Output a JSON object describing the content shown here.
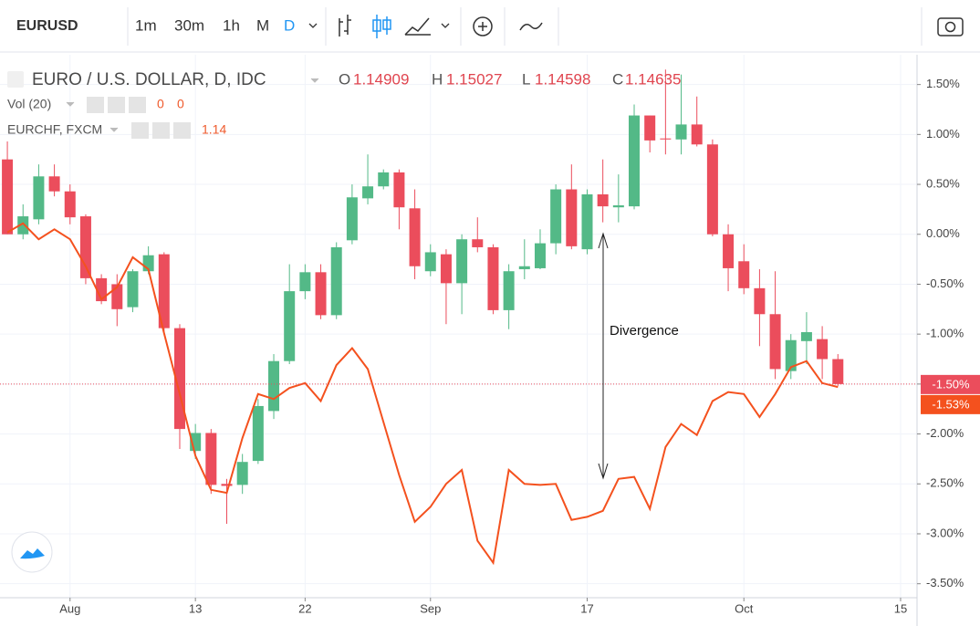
{
  "toolbar": {
    "symbol": "EURUSD",
    "intervals": [
      "1m",
      "30m",
      "1h",
      "M",
      "D"
    ]
  },
  "chart_data": {
    "type": "candlestick",
    "title": "EURO / U.S. DOLLAR, D, IDC",
    "ohlc_legend": [
      {
        "key": "O",
        "value": 1.14909
      },
      {
        "key": "H",
        "value": 1.15027
      },
      {
        "key": "L",
        "value": 1.14598
      },
      {
        "key": "C",
        "value": 1.14635
      }
    ],
    "volume": {
      "name": "Vol (20)",
      "values": [
        0,
        0
      ]
    },
    "up_color": "#53b987",
    "down_color": "#eb4d5c",
    "open": [
      0.75,
      0,
      0.15,
      0.58,
      0.43,
      0.18,
      -0.44,
      -0.5,
      -0.73,
      -0.37,
      -0.2,
      -0.94,
      -2.17,
      -1.99,
      -2.5,
      -2.51,
      -2.27,
      -1.77,
      -1.27,
      -0.57,
      -0.38,
      -0.81,
      -0.06,
      0.36,
      0.48,
      0.62,
      0.26,
      -0.37,
      -0.2,
      -0.49,
      -0.05,
      -0.13,
      -0.76,
      -0.35,
      -0.34,
      -0.09,
      0.45,
      -0.15,
      0.4,
      0.27,
      0.28,
      1.19,
      0.96,
      0.95,
      1.1,
      0.9,
      0,
      -0.27,
      -0.54,
      -0.8,
      -1.37,
      -1.07,
      -1.05,
      -1.25
    ],
    "high": [
      0.93,
      0.3,
      0.7,
      0.7,
      0.5,
      0.2,
      -0.4,
      -0.4,
      -0.35,
      -0.12,
      -0.18,
      -0.9,
      -1.9,
      -1.95,
      -2.45,
      -2.2,
      -1.65,
      -1.2,
      -0.3,
      -0.3,
      -0.3,
      -0.08,
      0.5,
      0.8,
      0.65,
      0.65,
      0.45,
      -0.1,
      -0.15,
      0,
      0.17,
      -0.1,
      -0.3,
      -0.05,
      0.05,
      0.5,
      0.7,
      0.45,
      0.75,
      0.6,
      1.3,
      1.19,
      1.65,
      1.6,
      1.38,
      0.95,
      0.1,
      -0.1,
      -0.35,
      -0.37,
      -1,
      -0.78,
      -0.92,
      -1.2
    ],
    "low": [
      0,
      -0.05,
      0.1,
      0.38,
      0.1,
      -0.5,
      -0.7,
      -0.92,
      -0.78,
      -0.4,
      -1,
      -2.15,
      -2.25,
      -2.6,
      -2.9,
      -2.6,
      -2.3,
      -1.85,
      -1.3,
      -0.65,
      -0.85,
      -0.85,
      -0.1,
      0.3,
      0.45,
      0.05,
      -0.45,
      -0.42,
      -0.9,
      -0.8,
      -0.18,
      -0.8,
      -0.95,
      -0.45,
      -0.35,
      -0.2,
      -0.15,
      -0.2,
      0.12,
      0.12,
      0.25,
      0.82,
      0.8,
      0.8,
      0.88,
      -0.02,
      -0.57,
      -0.6,
      -1.12,
      -1.45,
      -1.45,
      -1.3,
      -1.45,
      -1.52
    ],
    "close": [
      0,
      0.18,
      0.58,
      0.43,
      0.17,
      -0.44,
      -0.67,
      -0.75,
      -0.37,
      -0.21,
      -0.94,
      -1.95,
      -1.99,
      -2.51,
      -2.52,
      -2.28,
      -1.72,
      -1.27,
      -0.57,
      -0.38,
      -0.81,
      -0.13,
      0.37,
      0.48,
      0.62,
      0.27,
      -0.32,
      -0.18,
      -0.49,
      -0.05,
      -0.13,
      -0.76,
      -0.37,
      -0.32,
      -0.09,
      0.45,
      -0.12,
      0.4,
      0.28,
      0.29,
      1.19,
      0.94,
      0.95,
      1.1,
      0.9,
      0,
      -0.34,
      -0.54,
      -0.8,
      -1.35,
      -1.06,
      -0.98,
      -1.25,
      -1.5
    ],
    "series": [
      {
        "name": "EURCHF, FXCM",
        "color": "#f4511e",
        "last_value": 1.14,
        "values": [
          0.02,
          0.11,
          -0.05,
          0.05,
          -0.05,
          -0.32,
          -0.65,
          -0.53,
          -0.23,
          -0.35,
          -0.99,
          -1.6,
          -2.22,
          -2.56,
          -2.59,
          -2.04,
          -1.6,
          -1.65,
          -1.54,
          -1.49,
          -1.67,
          -1.31,
          -1.14,
          -1.35,
          -1.88,
          -2.41,
          -2.88,
          -2.73,
          -2.5,
          -2.36,
          -3.07,
          -3.29,
          -2.36,
          -2.5,
          -2.51,
          -2.5,
          -2.86,
          -2.83,
          -2.77,
          -2.45,
          -2.43,
          -2.75,
          -2.13,
          -1.9,
          -2.01,
          -1.67,
          -1.58,
          -1.6,
          -1.83,
          -1.6,
          -1.33,
          -1.27,
          -1.49,
          -1.53
        ]
      }
    ],
    "price_labels": [
      {
        "value": -1.5,
        "label": "-1.50%",
        "color": "#eb4d5c"
      },
      {
        "value": -1.53,
        "label": "-1.53%",
        "color": "#f4511e"
      }
    ],
    "annotation": "Divergence",
    "xlim": [
      -0.47,
      58.05
    ],
    "xticks": [
      {
        "value": 4,
        "label": "Aug"
      },
      {
        "value": 12,
        "label": "13"
      },
      {
        "value": 19,
        "label": "22"
      },
      {
        "value": 27,
        "label": "Sep"
      },
      {
        "value": 37,
        "label": "17"
      },
      {
        "value": 47,
        "label": "Oct"
      },
      {
        "value": 57,
        "label": "15"
      }
    ],
    "ylim": [
      -3.64,
      1.78
    ],
    "yticks": [
      {
        "value": 1.5,
        "label": "1.50%"
      },
      {
        "value": 1,
        "label": "1.00%"
      },
      {
        "value": 0.5,
        "label": "0.50%"
      },
      {
        "value": 0,
        "label": "0.00%"
      },
      {
        "value": -0.5,
        "label": "-0.50%"
      },
      {
        "value": -1,
        "label": "-1.00%"
      },
      {
        "value": -1.5,
        "label": "-1.50%"
      },
      {
        "value": -2,
        "label": "-2.00%"
      },
      {
        "value": -2.5,
        "label": "-2.50%"
      },
      {
        "value": -3,
        "label": "-3.00%"
      },
      {
        "value": -3.5,
        "label": "-3.50%"
      }
    ],
    "grid": true
  }
}
